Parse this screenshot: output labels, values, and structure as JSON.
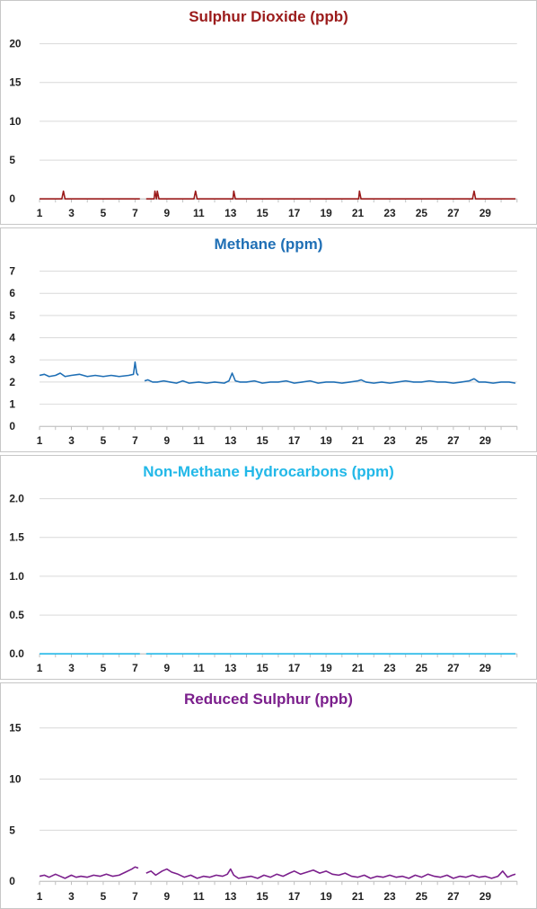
{
  "chart_data": [
    {
      "type": "line",
      "title": "Sulphur Dioxide (ppb)",
      "color": "#9b1b1b",
      "ylim": [
        0,
        20
      ],
      "yticks": [
        "0",
        "5",
        "10",
        "15",
        "20"
      ],
      "xlim": [
        1,
        31
      ],
      "xticks": [
        "1",
        "3",
        "5",
        "7",
        "9",
        "11",
        "13",
        "15",
        "17",
        "19",
        "21",
        "23",
        "25",
        "27",
        "29"
      ],
      "grid": true,
      "series": [
        {
          "segments": [
            [
              [
                1,
                0
              ],
              [
                2.4,
                0
              ],
              [
                2.5,
                1
              ],
              [
                2.6,
                0
              ],
              [
                7.3,
                0
              ]
            ],
            [
              [
                7.7,
                0
              ],
              [
                8.2,
                0
              ],
              [
                8.25,
                1
              ],
              [
                8.35,
                0
              ],
              [
                8.4,
                1
              ],
              [
                8.5,
                0
              ],
              [
                10.7,
                0
              ],
              [
                10.8,
                1
              ],
              [
                10.9,
                0
              ],
              [
                13.15,
                0
              ],
              [
                13.2,
                1
              ],
              [
                13.3,
                0
              ],
              [
                21.05,
                0
              ],
              [
                21.1,
                1
              ],
              [
                21.2,
                0
              ],
              [
                28.2,
                0
              ],
              [
                28.3,
                1
              ],
              [
                28.4,
                0
              ],
              [
                30.9,
                0
              ]
            ]
          ]
        }
      ]
    },
    {
      "type": "line",
      "title": "Methane (ppm)",
      "color": "#1f6fb5",
      "ylim": [
        0,
        7
      ],
      "yticks": [
        "0",
        "1",
        "2",
        "3",
        "4",
        "5",
        "6",
        "7"
      ],
      "xlim": [
        1,
        31
      ],
      "xticks": [
        "1",
        "3",
        "5",
        "7",
        "9",
        "11",
        "13",
        "15",
        "17",
        "19",
        "21",
        "23",
        "25",
        "27",
        "29"
      ],
      "grid": true,
      "series": [
        {
          "segments": [
            [
              [
                1,
                2.3
              ],
              [
                1.3,
                2.35
              ],
              [
                1.6,
                2.25
              ],
              [
                2,
                2.3
              ],
              [
                2.3,
                2.4
              ],
              [
                2.6,
                2.25
              ],
              [
                3,
                2.3
              ],
              [
                3.5,
                2.35
              ],
              [
                4,
                2.25
              ],
              [
                4.5,
                2.3
              ],
              [
                5,
                2.25
              ],
              [
                5.5,
                2.3
              ],
              [
                6,
                2.25
              ],
              [
                6.6,
                2.3
              ],
              [
                6.9,
                2.35
              ],
              [
                7.0,
                2.9
              ],
              [
                7.1,
                2.4
              ],
              [
                7.2,
                2.3
              ]
            ],
            [
              [
                7.6,
                2.05
              ],
              [
                7.8,
                2.1
              ],
              [
                8.1,
                2.0
              ],
              [
                8.4,
                2.0
              ],
              [
                8.8,
                2.05
              ],
              [
                9.2,
                2.0
              ],
              [
                9.6,
                1.95
              ],
              [
                10.0,
                2.05
              ],
              [
                10.4,
                1.95
              ],
              [
                11,
                2.0
              ],
              [
                11.5,
                1.95
              ],
              [
                12,
                2.0
              ],
              [
                12.6,
                1.95
              ],
              [
                12.9,
                2.05
              ],
              [
                13.1,
                2.4
              ],
              [
                13.3,
                2.05
              ],
              [
                13.6,
                2.0
              ],
              [
                14,
                2.0
              ],
              [
                14.5,
                2.05
              ],
              [
                15,
                1.95
              ],
              [
                15.5,
                2.0
              ],
              [
                16,
                2.0
              ],
              [
                16.5,
                2.05
              ],
              [
                17,
                1.95
              ],
              [
                17.5,
                2.0
              ],
              [
                18,
                2.05
              ],
              [
                18.5,
                1.95
              ],
              [
                19,
                2.0
              ],
              [
                19.5,
                2.0
              ],
              [
                20,
                1.95
              ],
              [
                20.5,
                2.0
              ],
              [
                21,
                2.05
              ],
              [
                21.2,
                2.1
              ],
              [
                21.5,
                2.0
              ],
              [
                22,
                1.95
              ],
              [
                22.5,
                2.0
              ],
              [
                23,
                1.95
              ],
              [
                23.5,
                2.0
              ],
              [
                24,
                2.05
              ],
              [
                24.5,
                2.0
              ],
              [
                25,
                2.0
              ],
              [
                25.5,
                2.05
              ],
              [
                26,
                2.0
              ],
              [
                26.5,
                2.0
              ],
              [
                27,
                1.95
              ],
              [
                27.5,
                2.0
              ],
              [
                28,
                2.05
              ],
              [
                28.3,
                2.15
              ],
              [
                28.6,
                2.0
              ],
              [
                29,
                2.0
              ],
              [
                29.5,
                1.95
              ],
              [
                30,
                2.0
              ],
              [
                30.5,
                2.0
              ],
              [
                30.9,
                1.95
              ]
            ]
          ]
        }
      ]
    },
    {
      "type": "line",
      "title": "Non-Methane Hydrocarbons (ppm)",
      "color": "#22b8e8",
      "ylim": [
        0.0,
        2.0
      ],
      "yticks": [
        "0.0",
        "0.5",
        "1.0",
        "1.5",
        "2.0"
      ],
      "xlim": [
        1,
        31
      ],
      "xticks": [
        "1",
        "3",
        "5",
        "7",
        "9",
        "11",
        "13",
        "15",
        "17",
        "19",
        "21",
        "23",
        "25",
        "27",
        "29"
      ],
      "grid": true,
      "series": [
        {
          "segments": [
            [
              [
                1,
                0
              ],
              [
                7.3,
                0
              ]
            ],
            [
              [
                7.7,
                0
              ],
              [
                30.9,
                0
              ]
            ]
          ]
        }
      ]
    },
    {
      "type": "line",
      "title": "Reduced Sulphur (ppb)",
      "color": "#7b1f8c",
      "ylim": [
        0,
        15
      ],
      "yticks": [
        "0",
        "5",
        "10",
        "15"
      ],
      "xlim": [
        1,
        31
      ],
      "xticks": [
        "1",
        "3",
        "5",
        "7",
        "9",
        "11",
        "13",
        "15",
        "17",
        "19",
        "21",
        "23",
        "25",
        "27",
        "29"
      ],
      "grid": true,
      "series": [
        {
          "segments": [
            [
              [
                1,
                0.5
              ],
              [
                1.3,
                0.6
              ],
              [
                1.6,
                0.4
              ],
              [
                2,
                0.7
              ],
              [
                2.3,
                0.5
              ],
              [
                2.6,
                0.3
              ],
              [
                3,
                0.6
              ],
              [
                3.3,
                0.4
              ],
              [
                3.6,
                0.5
              ],
              [
                4,
                0.4
              ],
              [
                4.4,
                0.6
              ],
              [
                4.8,
                0.5
              ],
              [
                5.2,
                0.7
              ],
              [
                5.6,
                0.5
              ],
              [
                6,
                0.6
              ],
              [
                6.4,
                0.9
              ],
              [
                6.8,
                1.2
              ],
              [
                7.0,
                1.4
              ],
              [
                7.2,
                1.3
              ]
            ],
            [
              [
                7.7,
                0.8
              ],
              [
                8.0,
                1.0
              ],
              [
                8.3,
                0.6
              ],
              [
                8.7,
                1.0
              ],
              [
                9.0,
                1.2
              ],
              [
                9.3,
                0.9
              ],
              [
                9.7,
                0.7
              ],
              [
                10.1,
                0.4
              ],
              [
                10.5,
                0.6
              ],
              [
                10.9,
                0.3
              ],
              [
                11.3,
                0.5
              ],
              [
                11.7,
                0.4
              ],
              [
                12.1,
                0.6
              ],
              [
                12.5,
                0.5
              ],
              [
                12.8,
                0.7
              ],
              [
                13.0,
                1.2
              ],
              [
                13.2,
                0.6
              ],
              [
                13.5,
                0.3
              ],
              [
                13.9,
                0.4
              ],
              [
                14.3,
                0.5
              ],
              [
                14.7,
                0.3
              ],
              [
                15.1,
                0.6
              ],
              [
                15.5,
                0.4
              ],
              [
                15.9,
                0.7
              ],
              [
                16.3,
                0.5
              ],
              [
                16.7,
                0.8
              ],
              [
                17.0,
                1.0
              ],
              [
                17.4,
                0.7
              ],
              [
                17.8,
                0.9
              ],
              [
                18.2,
                1.1
              ],
              [
                18.6,
                0.8
              ],
              [
                19,
                1.0
              ],
              [
                19.4,
                0.7
              ],
              [
                19.8,
                0.6
              ],
              [
                20.2,
                0.8
              ],
              [
                20.6,
                0.5
              ],
              [
                21,
                0.4
              ],
              [
                21.4,
                0.6
              ],
              [
                21.8,
                0.3
              ],
              [
                22.2,
                0.5
              ],
              [
                22.6,
                0.4
              ],
              [
                23,
                0.6
              ],
              [
                23.4,
                0.4
              ],
              [
                23.8,
                0.5
              ],
              [
                24.2,
                0.3
              ],
              [
                24.6,
                0.6
              ],
              [
                25,
                0.4
              ],
              [
                25.4,
                0.7
              ],
              [
                25.8,
                0.5
              ],
              [
                26.2,
                0.4
              ],
              [
                26.6,
                0.6
              ],
              [
                27,
                0.3
              ],
              [
                27.4,
                0.5
              ],
              [
                27.8,
                0.4
              ],
              [
                28.2,
                0.6
              ],
              [
                28.6,
                0.4
              ],
              [
                29,
                0.5
              ],
              [
                29.4,
                0.3
              ],
              [
                29.8,
                0.5
              ],
              [
                30.1,
                1.0
              ],
              [
                30.4,
                0.4
              ],
              [
                30.7,
                0.6
              ],
              [
                30.9,
                0.7
              ]
            ]
          ]
        }
      ]
    }
  ]
}
